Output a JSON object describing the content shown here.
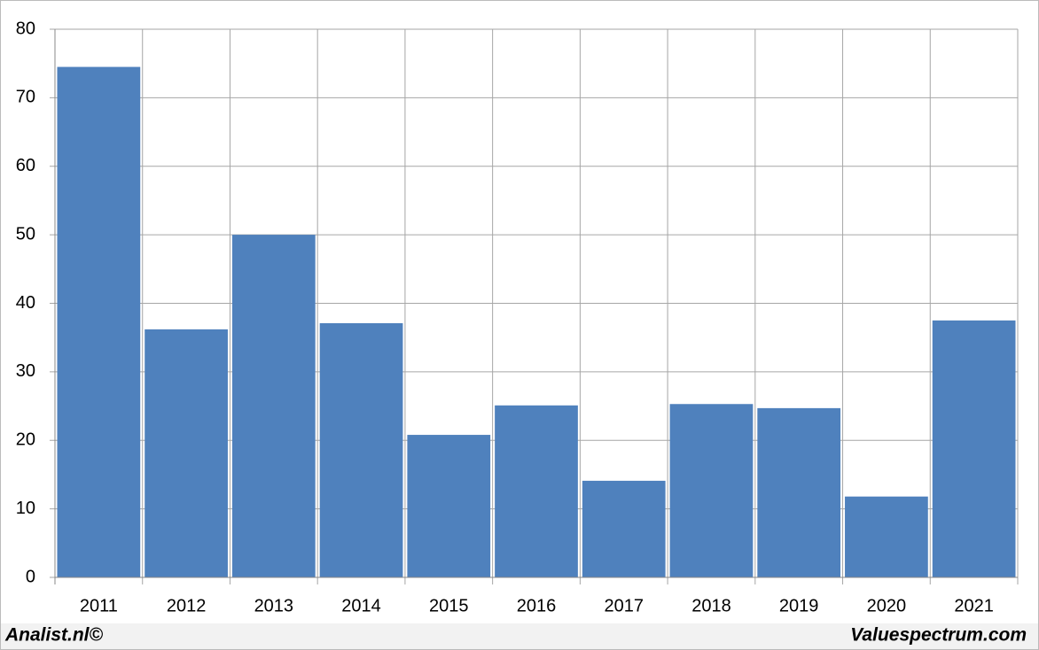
{
  "chart_data": {
    "type": "bar",
    "categories": [
      "2011",
      "2012",
      "2013",
      "2014",
      "2015",
      "2016",
      "2017",
      "2018",
      "2019",
      "2020",
      "2021"
    ],
    "values": [
      74.5,
      36.2,
      50,
      37.1,
      20.8,
      25.1,
      14.1,
      25.3,
      24.7,
      11.8,
      37.5
    ],
    "color": "#4f81bd",
    "ylim": [
      0,
      80
    ],
    "yticks": [
      0,
      10,
      20,
      30,
      40,
      50,
      60,
      70,
      80
    ],
    "grid": true
  },
  "footer": {
    "left": "Analist.nl©",
    "right": "Valuespectrum.com"
  }
}
